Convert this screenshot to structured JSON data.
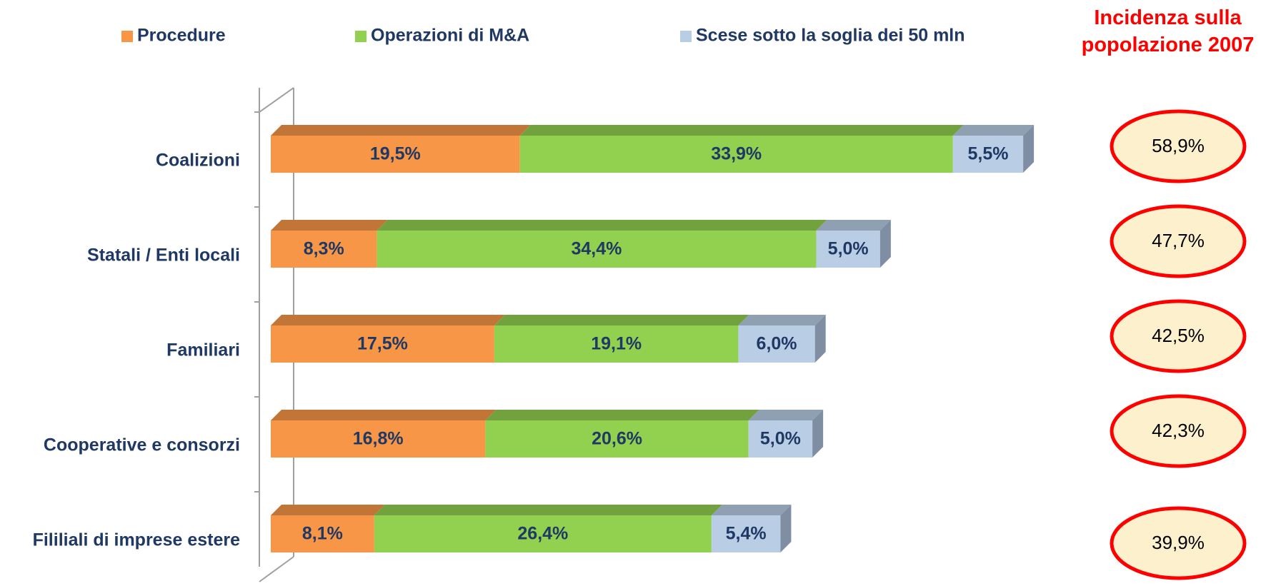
{
  "chart_data": {
    "type": "bar",
    "orientation": "horizontal",
    "stacked": true,
    "categories": [
      "Coalizioni",
      "Statali / Enti locali",
      "Familiari",
      "Cooperative e consorzi",
      "Fililiali di imprese estere"
    ],
    "series": [
      {
        "name": "Procedure",
        "color": "#f79646",
        "values": [
          19.5,
          8.3,
          17.5,
          16.8,
          8.1
        ],
        "value_labels": [
          "19,5%",
          "8,3%",
          "17,5%",
          "16,8%",
          "8,1%"
        ]
      },
      {
        "name": "Operazioni di M&A",
        "color": "#92d050",
        "values": [
          33.9,
          34.4,
          19.1,
          20.6,
          26.4
        ],
        "value_labels": [
          "33,9%",
          "34,4%",
          "19,1%",
          "20,6%",
          "26,4%"
        ]
      },
      {
        "name": "Scese sotto la soglia dei 50 mln",
        "color": "#b9cde5",
        "values": [
          5.5,
          5.0,
          6.0,
          5.0,
          5.4
        ],
        "value_labels": [
          "5,5%",
          "5,0%",
          "6,0%",
          "5,0%",
          "5,4%"
        ]
      }
    ],
    "side_title": "Incidenza sulla popolazione 2007",
    "side_values": [
      58.9,
      47.7,
      42.5,
      42.3,
      39.9
    ],
    "side_value_labels": [
      "58,9%",
      "47,7%",
      "42,5%",
      "42,3%",
      "39,9%"
    ]
  }
}
